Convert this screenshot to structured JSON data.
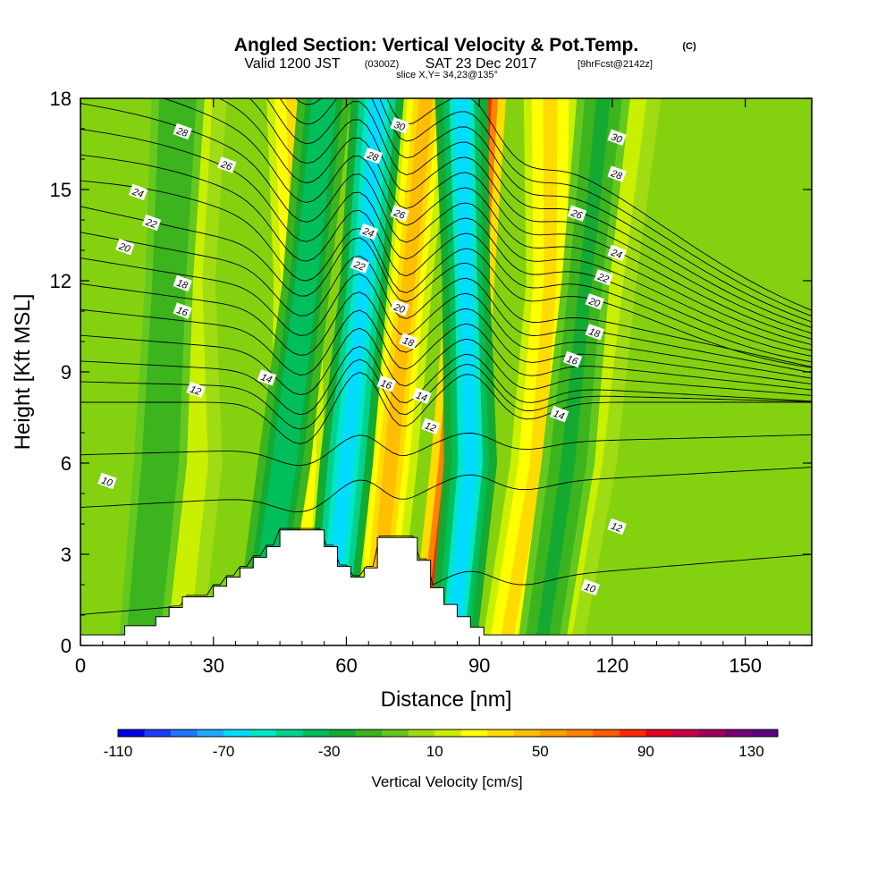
{
  "title": {
    "main": "Angled Section: Vertical Velocity & Pot.Temp.",
    "main_unit": "(C)",
    "valid_prefix": "Valid 1200 JST",
    "valid_zulu": "(0300Z)",
    "valid_date": "SAT 23 Dec 2017",
    "valid_fcst": "[9hrFcst@2142z]",
    "slice": "slice X,Y= 34,23@135°"
  },
  "chart_data": {
    "type": "heatmap",
    "xlabel": "Distance [nm]",
    "ylabel": "Height [Kft MSL]",
    "xlim": [
      0,
      165
    ],
    "ylim": [
      0,
      18
    ],
    "x_ticks": [
      0,
      30,
      60,
      90,
      120,
      150
    ],
    "y_ticks": [
      0,
      3,
      6,
      9,
      12,
      15,
      18
    ],
    "colorbar": {
      "label": "Vertical Velocity [cm/s]",
      "min": -110,
      "max": 140,
      "step": 10,
      "tick_labels": [
        -110,
        -70,
        -30,
        10,
        50,
        90,
        130
      ],
      "colors": [
        "#0000e6",
        "#1e3cff",
        "#1e78ff",
        "#1eaaff",
        "#00dcff",
        "#00e6c8",
        "#00d28c",
        "#00be5a",
        "#14aa32",
        "#3cb41e",
        "#64c81e",
        "#a0dc14",
        "#c8f000",
        "#ffff00",
        "#ffdc00",
        "#ffbe00",
        "#ffa000",
        "#ff8200",
        "#ff5a00",
        "#ff2800",
        "#e6001e",
        "#c80046",
        "#a0005a",
        "#780078",
        "#5a0082"
      ]
    },
    "terrain_top_kft": [
      [
        0,
        0.35
      ],
      [
        10,
        0.65
      ],
      [
        17,
        0.95
      ],
      [
        20,
        1.25
      ],
      [
        23,
        1.6
      ],
      [
        30,
        1.95
      ],
      [
        33,
        2.25
      ],
      [
        36,
        2.55
      ],
      [
        39,
        2.9
      ],
      [
        42,
        3.25
      ],
      [
        45,
        3.8
      ],
      [
        52,
        3.8
      ],
      [
        55,
        3.25
      ],
      [
        58,
        2.6
      ],
      [
        61,
        2.25
      ],
      [
        64,
        2.55
      ],
      [
        67,
        3.55
      ],
      [
        73,
        3.55
      ],
      [
        76,
        2.8
      ],
      [
        79,
        1.9
      ],
      [
        82,
        1.35
      ],
      [
        85,
        0.95
      ],
      [
        88,
        0.6
      ],
      [
        91,
        0.35
      ],
      [
        165,
        0.35
      ]
    ],
    "updraft_bands": [
      {
        "name": "updraft-west",
        "x": [
          22,
          26,
          25,
          27
        ],
        "w_cms": 15
      },
      {
        "name": "updraft-central-west",
        "x": [
          47,
          49,
          49,
          48
        ],
        "w_cms": 35
      },
      {
        "name": "updraft-central",
        "x": [
          66,
          70,
          74,
          78
        ],
        "w_cms": 45
      },
      {
        "name": "updraft-main",
        "x": [
          80,
          85,
          88,
          90
        ],
        "w_cms": 100
      },
      {
        "name": "updraft-east",
        "x": [
          96,
          103,
          106,
          106
        ],
        "w_cms": 35
      },
      {
        "name": "updraft-far-east",
        "x": [
          108,
          115,
          120,
          125
        ],
        "w_cms": 15
      }
    ],
    "downdraft_bands": [
      {
        "name": "downdraft-west",
        "x": [
          14,
          18,
          20,
          22
        ],
        "w_cms": -20
      },
      {
        "name": "downdraft-central-west",
        "x": [
          40,
          46,
          51,
          55
        ],
        "w_cms": -40
      },
      {
        "name": "downdraft-central",
        "x": [
          56,
          60,
          64,
          67
        ],
        "w_cms": -70
      },
      {
        "name": "downdraft-east",
        "x": [
          84,
          88,
          87,
          86
        ],
        "w_cms": -65
      },
      {
        "name": "downdraft-far-east",
        "x": [
          104,
          110,
          114,
          118
        ],
        "w_cms": -25
      }
    ],
    "isentrope_levels_c": [
      10,
      12,
      14,
      16,
      18,
      20,
      22,
      24,
      26,
      28,
      30
    ],
    "contour_labels": [
      {
        "value": "28",
        "x": 23,
        "y": 16.9
      },
      {
        "value": "26",
        "x": 33,
        "y": 15.8
      },
      {
        "value": "24",
        "x": 13,
        "y": 14.9
      },
      {
        "value": "22",
        "x": 16,
        "y": 13.9
      },
      {
        "value": "20",
        "x": 10,
        "y": 13.1
      },
      {
        "value": "18",
        "x": 23,
        "y": 11.9
      },
      {
        "value": "16",
        "x": 23,
        "y": 11.0
      },
      {
        "value": "14",
        "x": 42,
        "y": 8.8
      },
      {
        "value": "12",
        "x": 26,
        "y": 8.4
      },
      {
        "value": "10",
        "x": 6,
        "y": 5.4
      },
      {
        "value": "30",
        "x": 72,
        "y": 17.1
      },
      {
        "value": "28",
        "x": 66,
        "y": 16.1
      },
      {
        "value": "26",
        "x": 72,
        "y": 14.2
      },
      {
        "value": "24",
        "x": 65,
        "y": 13.6
      },
      {
        "value": "22",
        "x": 63,
        "y": 12.5
      },
      {
        "value": "20",
        "x": 72,
        "y": 11.1
      },
      {
        "value": "18",
        "x": 74,
        "y": 10.0
      },
      {
        "value": "16",
        "x": 69,
        "y": 8.6
      },
      {
        "value": "14",
        "x": 77,
        "y": 8.2
      },
      {
        "value": "12",
        "x": 79,
        "y": 7.2
      },
      {
        "value": "30",
        "x": 121,
        "y": 16.7
      },
      {
        "value": "28",
        "x": 121,
        "y": 15.5
      },
      {
        "value": "26",
        "x": 112,
        "y": 14.2
      },
      {
        "value": "24",
        "x": 121,
        "y": 12.9
      },
      {
        "value": "22",
        "x": 118,
        "y": 12.1
      },
      {
        "value": "20",
        "x": 116,
        "y": 11.3
      },
      {
        "value": "18",
        "x": 116,
        "y": 10.3
      },
      {
        "value": "16",
        "x": 111,
        "y": 9.4
      },
      {
        "value": "14",
        "x": 108,
        "y": 7.6
      },
      {
        "value": "12",
        "x": 121,
        "y": 3.9
      },
      {
        "value": "10",
        "x": 115,
        "y": 1.9
      }
    ]
  }
}
